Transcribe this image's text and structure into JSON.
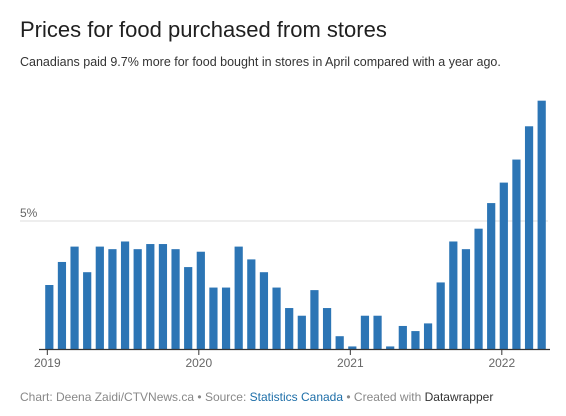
{
  "header": {
    "title": "Prices for food purchased from stores",
    "subtitle": "Canadians paid 9.7% more for food bought in stores in April compared with a year ago."
  },
  "footer": {
    "chart_prefix": "Chart: ",
    "chart_author": "Deena Zaidi/CTVNews.ca",
    "source_prefix": " • Source: ",
    "source_link": "Statistics Canada",
    "created_prefix": " • Created with ",
    "created_link": "Datawrapper"
  },
  "colors": {
    "bar": "#2c75b5",
    "grid": "#dddddd",
    "axis": "#333333",
    "link": "#1d6ea8"
  },
  "chart_data": {
    "type": "bar",
    "title": "Prices for food purchased from stores",
    "subtitle": "Canadians paid 9.7% more for food bought in stores in April compared with a year ago.",
    "xlabel": "",
    "ylabel": "",
    "ylim": [
      0,
      10
    ],
    "y_ticks": [
      {
        "value": 5,
        "label": "5%"
      }
    ],
    "grid": true,
    "x_ticks": [
      {
        "label": "2019",
        "index": 0
      },
      {
        "label": "2020",
        "index": 12
      },
      {
        "label": "2021",
        "index": 24
      },
      {
        "label": "2022",
        "index": 36
      }
    ],
    "categories": [
      "2019-01",
      "2019-02",
      "2019-03",
      "2019-04",
      "2019-05",
      "2019-06",
      "2019-07",
      "2019-08",
      "2019-09",
      "2019-10",
      "2019-11",
      "2019-12",
      "2020-01",
      "2020-02",
      "2020-03",
      "2020-04",
      "2020-05",
      "2020-06",
      "2020-07",
      "2020-08",
      "2020-09",
      "2020-10",
      "2020-11",
      "2020-12",
      "2021-01",
      "2021-02",
      "2021-03",
      "2021-04",
      "2021-05",
      "2021-06",
      "2021-07",
      "2021-08",
      "2021-09",
      "2021-10",
      "2021-11",
      "2021-12",
      "2022-01",
      "2022-02",
      "2022-03",
      "2022-04"
    ],
    "values": [
      2.5,
      3.4,
      4.0,
      3.0,
      4.0,
      3.9,
      4.2,
      3.9,
      4.1,
      4.1,
      3.9,
      3.2,
      3.8,
      2.4,
      2.4,
      4.0,
      3.5,
      3.0,
      2.4,
      1.6,
      1.3,
      2.3,
      1.6,
      0.5,
      0.1,
      1.3,
      1.3,
      0.1,
      0.9,
      0.7,
      1.0,
      2.6,
      4.2,
      3.9,
      4.7,
      5.7,
      6.5,
      7.4,
      8.7,
      9.7
    ]
  }
}
